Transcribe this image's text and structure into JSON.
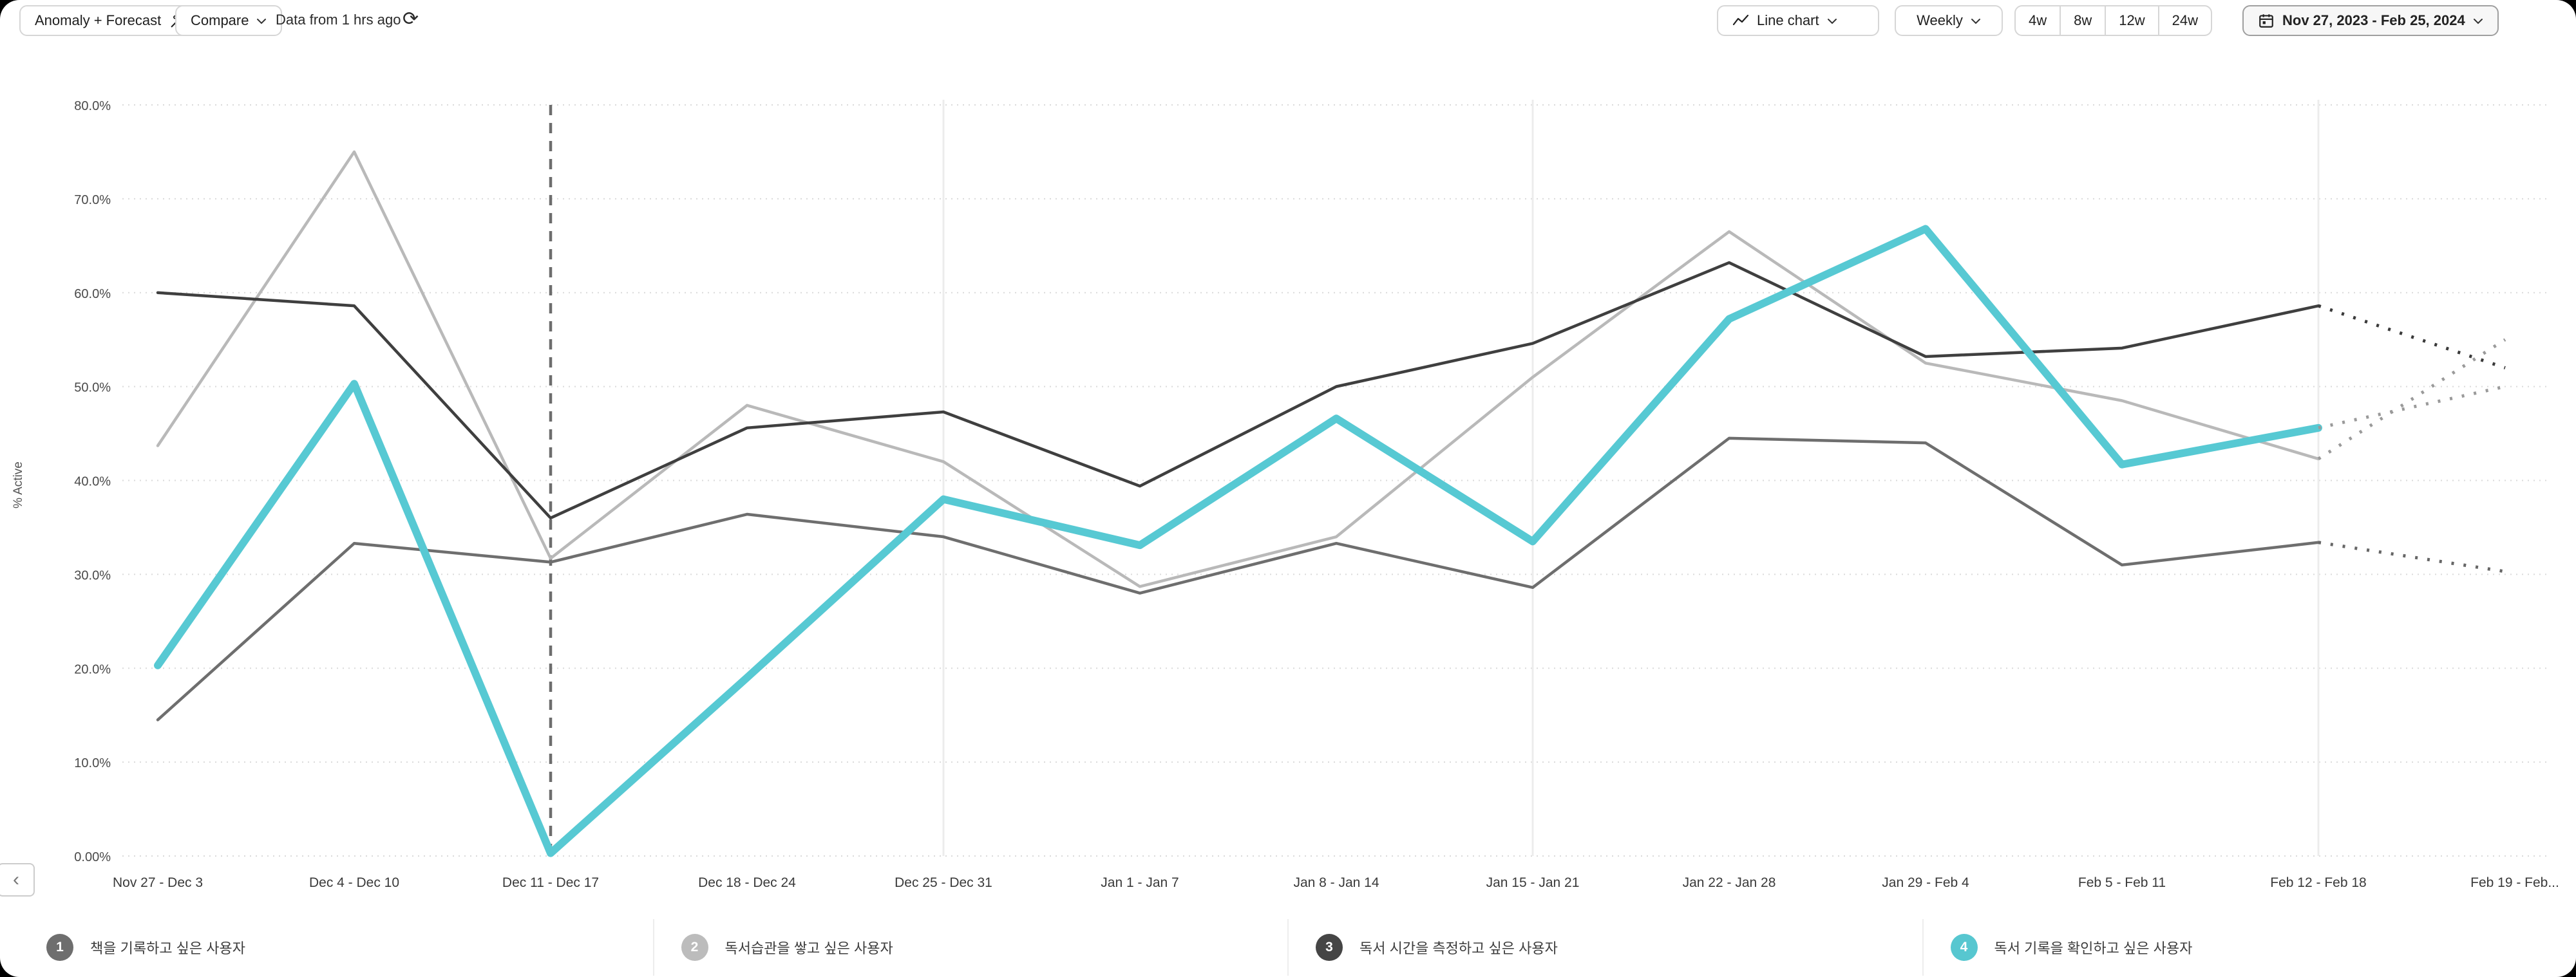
{
  "toolbar": {
    "anomaly_forecast_label": "Anomaly + Forecast",
    "compare_label": "Compare",
    "data_freshness": "Data from 1 hrs ago",
    "chart_type_label": "Line chart",
    "granularity_label": "Weekly",
    "range_presets": [
      "4w",
      "8w",
      "12w",
      "24w"
    ],
    "date_range_label": "Nov 27, 2023 - Feb 25, 2024"
  },
  "icons": {
    "refresh": "⟳",
    "chevron_left": "‹"
  },
  "legend": [
    {
      "num": "1",
      "label": "책을 기록하고 싶은 사용자",
      "color": "#6e6e6e"
    },
    {
      "num": "2",
      "label": "독서습관을 쌓고 싶은 사용자",
      "color": "#bcbcbc"
    },
    {
      "num": "3",
      "label": "독서 시간을 측정하고 싶은 사용자",
      "color": "#454545"
    },
    {
      "num": "4",
      "label": "독서 기록을 확인하고 싶은 사용자",
      "color": "#57c7d0"
    }
  ],
  "chart_data": {
    "type": "line",
    "ylabel": "% Active",
    "ylim": [
      0,
      80
    ],
    "grid": "horizontal-dotted",
    "legend_position": "bottom",
    "y_ticks": [
      "80.0%",
      "70.0%",
      "60.0%",
      "50.0%",
      "40.0%",
      "30.0%",
      "20.0%",
      "10.0%",
      "0.00%"
    ],
    "categories": [
      "Nov 27 - Dec 3",
      "Dec 4 - Dec 10",
      "Dec 11 - Dec 17",
      "Dec 18 - Dec 24",
      "Dec 25 - Dec 31",
      "Jan 1 - Jan 7",
      "Jan 8 - Jan 14",
      "Jan 15 - Jan 21",
      "Jan 22 - Jan 28",
      "Jan 29 - Feb 4",
      "Feb 5 - Feb 11",
      "Feb 12 - Feb 18",
      "Feb 19 - Feb..."
    ],
    "anomaly_line_index": 2,
    "vertical_marker_indices": [
      4,
      7,
      11
    ],
    "forecast_start_index": 11,
    "series": [
      {
        "name": "책을 기록하고 싶은 사용자",
        "color": "#6e6e6e",
        "width": 4.5,
        "values": [
          14.5,
          33.3,
          31.3,
          36.4,
          34,
          28,
          33.3,
          28.6,
          44.5,
          44,
          31,
          33.4
        ],
        "forecast_value": 30.3,
        "forecast_color": "#666666"
      },
      {
        "name": "독서습관을 쌓고 싶은 사용자",
        "color": "#b9b9b9",
        "width": 4.5,
        "values": [
          43.7,
          75,
          31.7,
          48,
          42,
          28.7,
          34,
          51,
          66.5,
          52.5,
          48.5,
          42.3
        ],
        "forecast_value": 55,
        "forecast_color": "#9a9a9a"
      },
      {
        "name": "독서 시간을 측정하고 싶은 사용자",
        "color": "#3f3f3f",
        "width": 4.5,
        "values": [
          60,
          58.6,
          36,
          45.6,
          47.3,
          39.4,
          50,
          54.6,
          63.2,
          53.2,
          54.1,
          58.6
        ],
        "forecast_value": 52,
        "forecast_color": "#3a3a3a"
      },
      {
        "name": "독서 기록을 확인하고 싶은 사용자",
        "color": "#57c9d3",
        "width": 12,
        "values": [
          20.3,
          50.3,
          0.3,
          19,
          38,
          33.1,
          46.6,
          33.5,
          57.2,
          66.8,
          41.7,
          45.6
        ],
        "forecast_value": 50,
        "forecast_color": "#9a9a9a"
      }
    ]
  }
}
